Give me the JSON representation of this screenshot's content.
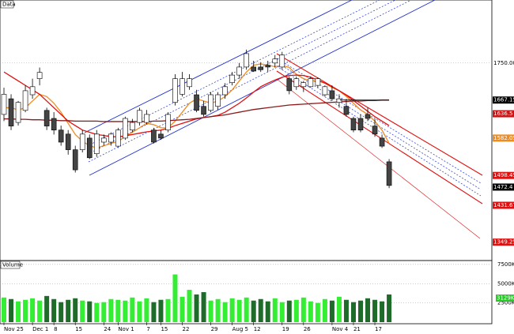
{
  "chart_data": {
    "type": "candlestick",
    "title": "Data",
    "volume_title": "Volume",
    "categories": [
      "Nov 25",
      null,
      null,
      null,
      "Dec 1",
      null,
      null,
      "8",
      null,
      null,
      "15",
      null,
      null,
      null,
      "24",
      null,
      "Nov 1",
      null,
      null,
      null,
      "7",
      null,
      "15",
      null,
      null,
      "22",
      null,
      null,
      null,
      "29",
      null,
      null,
      "Aug 5",
      null,
      null,
      "12",
      null,
      null,
      null,
      "19",
      null,
      null,
      "26",
      null,
      null,
      null,
      "Nov 4",
      null,
      null,
      "21",
      null,
      null,
      "17",
      null,
      null
    ],
    "candles": [
      [
        1635,
        1695,
        1620,
        1680
      ],
      [
        1670,
        1680,
        1600,
        1609
      ],
      [
        1617,
        1665,
        1610,
        1662
      ],
      [
        1644,
        1700,
        1640,
        1688
      ],
      [
        1679,
        1715,
        1670,
        1697
      ],
      [
        1715,
        1740,
        1700,
        1729
      ],
      [
        1644,
        1650,
        1600,
        1609
      ],
      [
        1626,
        1640,
        1590,
        1600
      ],
      [
        1600,
        1610,
        1565,
        1573
      ],
      [
        1591,
        1600,
        1545,
        1556
      ],
      [
        1556,
        1565,
        1505,
        1511
      ],
      [
        1556,
        1600,
        1550,
        1591
      ],
      [
        1582,
        1590,
        1535,
        1538
      ],
      [
        1547,
        1600,
        1540,
        1591
      ],
      [
        1573,
        1590,
        1565,
        1582
      ],
      [
        1573,
        1595,
        1565,
        1591
      ],
      [
        1564,
        1605,
        1560,
        1600
      ],
      [
        1582,
        1630,
        1578,
        1626
      ],
      [
        1600,
        1625,
        1595,
        1617
      ],
      [
        1617,
        1650,
        1610,
        1644
      ],
      [
        1617,
        1645,
        1612,
        1635
      ],
      [
        1600,
        1605,
        1570,
        1573
      ],
      [
        1591,
        1600,
        1578,
        1582
      ],
      [
        1600,
        1640,
        1595,
        1635
      ],
      [
        1662,
        1725,
        1655,
        1715
      ],
      [
        1680,
        1730,
        1675,
        1715
      ],
      [
        1697,
        1725,
        1690,
        1715
      ],
      [
        1679,
        1690,
        1640,
        1644
      ],
      [
        1653,
        1665,
        1630,
        1635
      ],
      [
        1644,
        1685,
        1640,
        1679
      ],
      [
        1653,
        1685,
        1645,
        1679
      ],
      [
        1679,
        1705,
        1670,
        1697
      ],
      [
        1706,
        1730,
        1700,
        1723
      ],
      [
        1723,
        1750,
        1715,
        1741
      ],
      [
        1741,
        1780,
        1735,
        1771
      ],
      [
        1741,
        1755,
        1730,
        1732
      ],
      [
        1741,
        1752,
        1730,
        1735
      ],
      [
        1745,
        1755,
        1730,
        1741
      ],
      [
        1750,
        1768,
        1740,
        1759
      ],
      [
        1741,
        1775,
        1735,
        1768
      ],
      [
        1715,
        1720,
        1680,
        1688
      ],
      [
        1697,
        1720,
        1690,
        1715
      ],
      [
        1697,
        1710,
        1685,
        1706
      ],
      [
        1697,
        1720,
        1695,
        1715
      ],
      [
        1700,
        1718,
        1695,
        1715
      ],
      [
        1679,
        1700,
        1675,
        1697
      ],
      [
        1688,
        1700,
        1665,
        1670
      ],
      [
        1662,
        1680,
        1650,
        1670
      ],
      [
        1653,
        1670,
        1630,
        1635
      ],
      [
        1626,
        1630,
        1595,
        1600
      ],
      [
        1626,
        1635,
        1595,
        1600
      ],
      [
        1635,
        1650,
        1620,
        1626
      ],
      [
        1609,
        1625,
        1585,
        1591
      ],
      [
        1582,
        1590,
        1560,
        1564
      ],
      [
        1529,
        1535,
        1470,
        1476
      ]
    ],
    "volume": [
      3200,
      3000,
      2700,
      2900,
      3100,
      2800,
      3400,
      3000,
      2600,
      2900,
      3100,
      2800,
      2700,
      2500,
      2600,
      3000,
      2900,
      2800,
      3200,
      2700,
      3100,
      2600,
      2900,
      3000,
      6200,
      3300,
      4200,
      3600,
      3900,
      2800,
      3000,
      2600,
      3100,
      2900,
      3200,
      2800,
      3000,
      2700,
      3100,
      2600,
      2800,
      2900,
      3200,
      2700,
      2500,
      3000,
      2800,
      3300,
      2900,
      2600,
      2800,
      3100,
      2900,
      2700,
      3600
    ],
    "series": [
      {
        "color": "#f08c1e",
        "values": [
          1650,
          1650,
          1645,
          1650,
          1665,
          1680,
          1675,
          1660,
          1640,
          1615,
          1590,
          1575,
          1565,
          1560,
          1565,
          1570,
          1575,
          1585,
          1595,
          1605,
          1615,
          1612,
          1605,
          1605,
          1620,
          1640,
          1660,
          1670,
          1665,
          1660,
          1665,
          1675,
          1690,
          1710,
          1730,
          1745,
          1748,
          1745,
          1742,
          1745,
          1740,
          1725,
          1715,
          1710,
          1710,
          1705,
          1695,
          1688,
          1675,
          1660,
          1645,
          1635,
          1620,
          1600,
          1570
        ]
      },
      {
        "color": "#e01010",
        "values": [
          1730,
          1720,
          1710,
          1700,
          1690,
          1680,
          1665,
          1650,
          1635,
          1620,
          1610,
          1600,
          1595,
          1590,
          1588,
          1585,
          1585,
          1587,
          1590,
          1593,
          1596,
          1598,
          1600,
          1604,
          1610,
          1615,
          1620,
          1625,
          1628,
          1630,
          1633,
          1640,
          1650,
          1660,
          1672,
          1685,
          1697,
          1705,
          1712,
          1718,
          1722,
          1723,
          1722,
          1718,
          1712,
          1705,
          1697,
          1688,
          1678,
          1666,
          1654,
          1642,
          1630,
          1620,
          1610
        ]
      },
      {
        "color": "#8b1a1a",
        "values": [
          1625,
          1625,
          1624,
          1624,
          1623,
          1623,
          1622,
          1622,
          1621,
          1621,
          1620,
          1620,
          1620,
          1620,
          1619,
          1619,
          1619,
          1619,
          1619,
          1619,
          1619,
          1620,
          1620,
          1621,
          1622,
          1623,
          1624,
          1626,
          1628,
          1630,
          1632,
          1634,
          1637,
          1640,
          1643,
          1646,
          1648,
          1650,
          1652,
          1654,
          1656,
          1657,
          1658,
          1659,
          1660,
          1661,
          1662,
          1663,
          1664,
          1665,
          1665,
          1666,
          1666,
          1667,
          1667
        ]
      }
    ],
    "ylim": [
      1308,
      1891
    ],
    "yticks": [
      {
        "value": 1750,
        "label": "1750.00"
      }
    ],
    "price_markers": [
      {
        "value": 1667.15,
        "color": "#000000"
      },
      {
        "value": 1636.5,
        "color": "#c81414"
      },
      {
        "value": 1582.05,
        "color": "#f08c1e"
      },
      {
        "value": 1498.45,
        "color": "#e01010"
      },
      {
        "value": 1472.4,
        "color": "#000000"
      },
      {
        "value": 1431.67,
        "color": "#e01010"
      },
      {
        "value": 1349.25,
        "color": "#e01010"
      }
    ],
    "vlim": [
      0,
      8000
    ],
    "vticks": [
      {
        "value": 7500,
        "label": "7500K"
      },
      {
        "value": 5000,
        "label": "5000K"
      },
      {
        "value": 2500,
        "label": "2500K"
      }
    ],
    "volume_marker": {
      "value": 3129,
      "label": "3129K",
      "color": "#22cc22"
    },
    "up_color": "#ffffff",
    "down_color": "#444444",
    "volume_up_color": "#33ee33",
    "volume_down_color": "#1f6b2a",
    "grid": true
  }
}
